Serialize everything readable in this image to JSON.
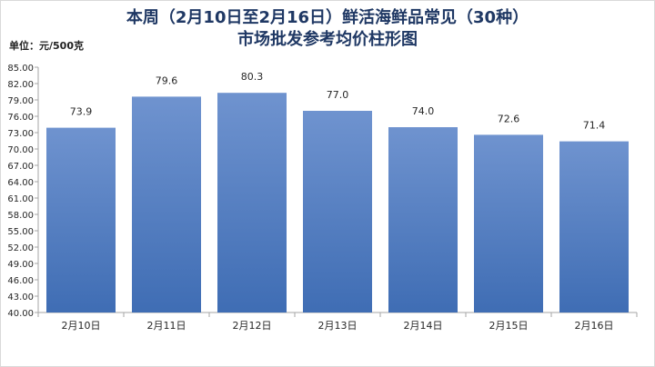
{
  "chart_data": {
    "type": "bar",
    "title": "本周（2月10日至2月16日）鲜活海鲜品常见（30种）",
    "subtitle": "市场批发参考均价柱形图",
    "unit_label": "单位：元/500克",
    "categories": [
      "2月10日",
      "2月11日",
      "2月12日",
      "2月13日",
      "2月14日",
      "2月15日",
      "2月16日"
    ],
    "values": [
      73.9,
      79.6,
      80.3,
      77.0,
      74.0,
      72.6,
      71.4
    ],
    "value_labels": [
      "73.9",
      "79.6",
      "80.3",
      "77.0",
      "74.0",
      "72.6",
      "71.4"
    ],
    "yticks": [
      "40.00",
      "43.00",
      "46.00",
      "49.00",
      "52.00",
      "55.00",
      "58.00",
      "61.00",
      "64.00",
      "67.00",
      "70.00",
      "73.00",
      "76.00",
      "79.00",
      "82.00",
      "85.00"
    ],
    "ylim": [
      40,
      85
    ],
    "grid": false,
    "colors": {
      "bar_top": "#6f93cf",
      "bar_bottom": "#3f6db4",
      "axis": "#a6a6a6",
      "title": "#1f3864"
    }
  }
}
